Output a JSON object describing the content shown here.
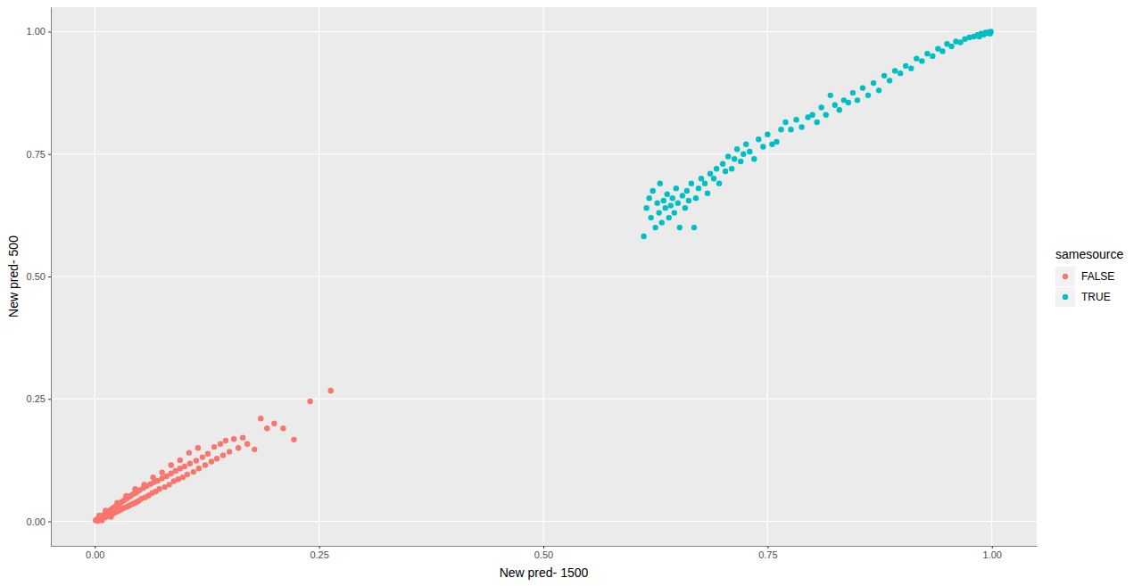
{
  "chart_data": {
    "type": "scatter",
    "x_label": "New pred- 1500",
    "y_label": "New pred- 500",
    "legend_title": "samesource",
    "legend": "right",
    "grid": true,
    "marker": "circle",
    "xlim": [
      -0.049,
      1.05
    ],
    "ylim": [
      -0.05,
      1.05
    ],
    "xticks": [
      {
        "value": 0,
        "label": "0.00"
      },
      {
        "value": 0.25,
        "label": "0.25"
      },
      {
        "value": 0.5,
        "label": "0.50"
      },
      {
        "value": 0.75,
        "label": "0.75"
      },
      {
        "value": 1,
        "label": "1.00"
      }
    ],
    "yticks": [
      {
        "value": 0,
        "label": "0.00"
      },
      {
        "value": 0.25,
        "label": "0.25"
      },
      {
        "value": 0.5,
        "label": "0.50"
      },
      {
        "value": 0.75,
        "label": "0.75"
      },
      {
        "value": 1,
        "label": "1.00"
      }
    ],
    "series": [
      {
        "name": "FALSE",
        "color": "#F8766D",
        "x": [
          0.001,
          0.002,
          0.003,
          0.004,
          0.005,
          0.006,
          0.007,
          0.008,
          0.009,
          0.01,
          0.011,
          0.012,
          0.013,
          0.014,
          0.015,
          0.016,
          0.017,
          0.018,
          0.019,
          0.02,
          0.021,
          0.022,
          0.023,
          0.024,
          0.025,
          0.026,
          0.027,
          0.028,
          0.029,
          0.03,
          0.031,
          0.032,
          0.033,
          0.034,
          0.035,
          0.036,
          0.037,
          0.038,
          0.039,
          0.04,
          0.041,
          0.042,
          0.043,
          0.044,
          0.045,
          0.046,
          0.047,
          0.048,
          0.049,
          0.05,
          0.052,
          0.054,
          0.056,
          0.058,
          0.06,
          0.062,
          0.064,
          0.066,
          0.068,
          0.07,
          0.072,
          0.075,
          0.078,
          0.08,
          0.083,
          0.085,
          0.088,
          0.09,
          0.093,
          0.095,
          0.098,
          0.1,
          0.103,
          0.106,
          0.11,
          0.113,
          0.116,
          0.12,
          0.123,
          0.126,
          0.13,
          0.133,
          0.136,
          0.14,
          0.143,
          0.146,
          0.15,
          0.155,
          0.16,
          0.165,
          0.17,
          0.178,
          0.185,
          0.192,
          0.2,
          0.21,
          0.222,
          0.24,
          0.263,
          0.005,
          0.008,
          0.012,
          0.018,
          0.025,
          0.035,
          0.045,
          0.055,
          0.065,
          0.075,
          0.085,
          0.095,
          0.105,
          0.115
        ],
        "values": [
          0.002,
          0.004,
          0.001,
          0.006,
          0.003,
          0.009,
          0.005,
          0.011,
          0.007,
          0.013,
          0.008,
          0.016,
          0.01,
          0.019,
          0.012,
          0.021,
          0.014,
          0.024,
          0.015,
          0.027,
          0.017,
          0.029,
          0.019,
          0.032,
          0.02,
          0.034,
          0.022,
          0.037,
          0.024,
          0.04,
          0.026,
          0.042,
          0.028,
          0.045,
          0.029,
          0.047,
          0.031,
          0.05,
          0.033,
          0.052,
          0.035,
          0.055,
          0.036,
          0.057,
          0.038,
          0.059,
          0.04,
          0.062,
          0.042,
          0.064,
          0.046,
          0.068,
          0.049,
          0.072,
          0.053,
          0.076,
          0.058,
          0.08,
          0.061,
          0.083,
          0.066,
          0.088,
          0.07,
          0.092,
          0.075,
          0.098,
          0.082,
          0.103,
          0.086,
          0.108,
          0.09,
          0.112,
          0.096,
          0.118,
          0.101,
          0.124,
          0.108,
          0.131,
          0.115,
          0.138,
          0.122,
          0.152,
          0.128,
          0.158,
          0.135,
          0.165,
          0.142,
          0.168,
          0.15,
          0.171,
          0.158,
          0.147,
          0.21,
          0.19,
          0.2,
          0.19,
          0.167,
          0.245,
          0.267,
          0.012,
          0.002,
          0.022,
          0.009,
          0.038,
          0.052,
          0.066,
          0.075,
          0.09,
          0.1,
          0.115,
          0.125,
          0.14,
          0.15
        ]
      },
      {
        "name": "TRUE",
        "color": "#00BFC4",
        "x": [
          0.612,
          0.615,
          0.618,
          0.62,
          0.622,
          0.625,
          0.627,
          0.629,
          0.63,
          0.632,
          0.634,
          0.636,
          0.638,
          0.64,
          0.642,
          0.644,
          0.646,
          0.648,
          0.65,
          0.652,
          0.655,
          0.658,
          0.66,
          0.662,
          0.665,
          0.668,
          0.67,
          0.673,
          0.676,
          0.68,
          0.683,
          0.686,
          0.69,
          0.693,
          0.696,
          0.7,
          0.703,
          0.706,
          0.71,
          0.713,
          0.716,
          0.72,
          0.723,
          0.726,
          0.73,
          0.735,
          0.74,
          0.745,
          0.75,
          0.755,
          0.76,
          0.765,
          0.77,
          0.776,
          0.782,
          0.788,
          0.795,
          0.8,
          0.805,
          0.81,
          0.815,
          0.82,
          0.825,
          0.83,
          0.835,
          0.84,
          0.845,
          0.85,
          0.856,
          0.862,
          0.868,
          0.874,
          0.88,
          0.886,
          0.892,
          0.898,
          0.904,
          0.91,
          0.916,
          0.922,
          0.928,
          0.934,
          0.94,
          0.945,
          0.95,
          0.955,
          0.96,
          0.965,
          0.97,
          0.975,
          0.98,
          0.984,
          0.988,
          0.991,
          0.993,
          0.995,
          0.997,
          0.998,
          0.999,
          0.986
        ],
        "values": [
          0.582,
          0.64,
          0.66,
          0.62,
          0.675,
          0.6,
          0.65,
          0.63,
          0.69,
          0.61,
          0.655,
          0.64,
          0.668,
          0.62,
          0.645,
          0.66,
          0.63,
          0.68,
          0.65,
          0.6,
          0.665,
          0.64,
          0.675,
          0.655,
          0.69,
          0.6,
          0.66,
          0.68,
          0.7,
          0.69,
          0.67,
          0.71,
          0.7,
          0.72,
          0.69,
          0.73,
          0.715,
          0.745,
          0.72,
          0.74,
          0.76,
          0.735,
          0.75,
          0.77,
          0.755,
          0.74,
          0.78,
          0.765,
          0.79,
          0.77,
          0.775,
          0.8,
          0.815,
          0.8,
          0.82,
          0.805,
          0.825,
          0.83,
          0.815,
          0.845,
          0.83,
          0.87,
          0.85,
          0.84,
          0.86,
          0.855,
          0.875,
          0.86,
          0.885,
          0.87,
          0.895,
          0.88,
          0.91,
          0.9,
          0.92,
          0.915,
          0.93,
          0.925,
          0.945,
          0.94,
          0.955,
          0.95,
          0.965,
          0.96,
          0.975,
          0.97,
          0.98,
          0.978,
          0.985,
          0.988,
          0.99,
          0.993,
          0.996,
          0.994,
          0.998,
          0.997,
          0.999,
          0.996,
          1.0,
          0.99
        ]
      }
    ]
  }
}
